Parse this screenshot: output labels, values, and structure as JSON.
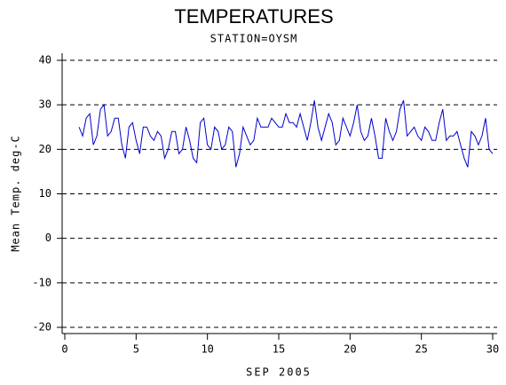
{
  "chart_data": {
    "type": "line",
    "title": "TEMPERATURES",
    "subtitle": "STATION=OYSM",
    "x_label": "SEP 2005",
    "y_label": "Mean Temp. deg-C",
    "xlim": [
      0,
      30
    ],
    "xticks": [
      0,
      5,
      10,
      15,
      20,
      25,
      30
    ],
    "ylim": [
      -20,
      40
    ],
    "yticks": [
      -20,
      -10,
      0,
      10,
      20,
      30,
      40
    ],
    "grid": true,
    "x": [
      1,
      1.25,
      1.5,
      1.75,
      2,
      2.25,
      2.5,
      2.75,
      3,
      3.25,
      3.5,
      3.75,
      4,
      4.25,
      4.5,
      4.75,
      5,
      5.25,
      5.5,
      5.75,
      6,
      6.25,
      6.5,
      6.75,
      7,
      7.25,
      7.5,
      7.75,
      8,
      8.25,
      8.5,
      8.75,
      9,
      9.25,
      9.5,
      9.75,
      10,
      10.25,
      10.5,
      10.75,
      11,
      11.25,
      11.5,
      11.75,
      12,
      12.25,
      12.5,
      12.75,
      13,
      13.25,
      13.5,
      13.75,
      14,
      14.25,
      14.5,
      14.75,
      15,
      15.25,
      15.5,
      15.75,
      16,
      16.25,
      16.5,
      16.75,
      17,
      17.25,
      17.5,
      17.75,
      18,
      18.25,
      18.5,
      18.75,
      19,
      19.25,
      19.5,
      19.75,
      20,
      20.25,
      20.5,
      20.75,
      21,
      21.25,
      21.5,
      21.75,
      22,
      22.25,
      22.5,
      22.75,
      23,
      23.25,
      23.5,
      23.75,
      24,
      24.25,
      24.5,
      24.75,
      25,
      25.25,
      25.5,
      25.75,
      26,
      26.25,
      26.5,
      26.75,
      27,
      27.25,
      27.5,
      27.75,
      28,
      28.25,
      28.5,
      28.75,
      29,
      29.25,
      29.5,
      29.75,
      30
    ],
    "series": [
      {
        "color": "#0000cc",
        "values": [
          25,
          23,
          27,
          28,
          21,
          23,
          29,
          30,
          23,
          24,
          27,
          27,
          21,
          18,
          25,
          26,
          22,
          19,
          25,
          25,
          23,
          22,
          24,
          23,
          18,
          20,
          24,
          24,
          19,
          20,
          25,
          22,
          18,
          17,
          26,
          27,
          21,
          20,
          25,
          24,
          20,
          21,
          25,
          24,
          16,
          19,
          25,
          23,
          21,
          22,
          27,
          25,
          25,
          25,
          27,
          26,
          25,
          25,
          28,
          26,
          26,
          25,
          28,
          25,
          22,
          26,
          31,
          25,
          22,
          25,
          28,
          26,
          21,
          22,
          27,
          25,
          23,
          26,
          30,
          24,
          22,
          23,
          27,
          23,
          18,
          18,
          27,
          24,
          22,
          24,
          29,
          31,
          23,
          24,
          25,
          23,
          22,
          25,
          24,
          22,
          22,
          26,
          29,
          22,
          23,
          23,
          24,
          21,
          18,
          16,
          24,
          23,
          21,
          23,
          27,
          20,
          19
        ]
      }
    ]
  }
}
